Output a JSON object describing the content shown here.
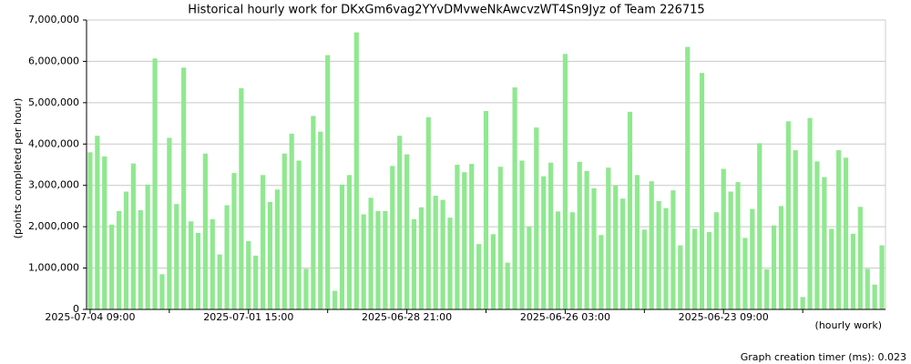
{
  "chart_data": {
    "type": "bar",
    "title": "Historical hourly work for DKxGm6vag2YYvDMvweNkAwcvzWT4Sn9Jyz of Team 226715",
    "y_label": "(points completed per hour)",
    "x_label": "(hourly work)",
    "footer": "Graph creation timer (ms): 0.023",
    "color": "#90e890",
    "grid": true,
    "ylim": [
      0,
      7000000
    ],
    "yticks": [
      0,
      {
        "value": 1000000,
        "label": "1,000,000"
      },
      {
        "value": 2000000,
        "label": "2,000,000"
      },
      {
        "value": 3000000,
        "label": "3,000,000"
      },
      {
        "value": 4000000,
        "label": "4,000,000"
      },
      {
        "value": 5000000,
        "label": "5,000,000"
      },
      {
        "value": 6000000,
        "label": "6,000,000"
      },
      {
        "value": 7000000,
        "label": "7,000,000"
      }
    ],
    "categories": [
      "2025-07-04 09:00",
      null,
      null,
      null,
      null,
      null,
      null,
      null,
      null,
      null,
      null,
      null,
      null,
      null,
      null,
      null,
      null,
      null,
      null,
      null,
      null,
      null,
      "2025-07-01 15:00",
      null,
      null,
      null,
      null,
      null,
      null,
      null,
      null,
      null,
      null,
      null,
      null,
      null,
      null,
      null,
      null,
      null,
      null,
      null,
      null,
      null,
      "2025-06-28 21:00",
      null,
      null,
      null,
      null,
      null,
      null,
      null,
      null,
      null,
      null,
      null,
      null,
      null,
      null,
      null,
      null,
      null,
      null,
      null,
      null,
      null,
      "2025-06-26 03:00",
      null,
      null,
      null,
      null,
      null,
      null,
      null,
      null,
      null,
      null,
      null,
      null,
      null,
      null,
      null,
      null,
      null,
      null,
      null,
      null,
      null,
      "2025-06-23 09:00",
      null,
      null,
      null,
      null,
      null,
      null,
      null,
      null,
      null,
      null,
      null,
      null,
      null,
      null,
      null,
      null,
      null,
      null,
      null,
      null,
      null,
      null
    ],
    "values": [
      3800000,
      4200000,
      3700000,
      2050000,
      2380000,
      2850000,
      3530000,
      2400000,
      3020000,
      6070000,
      850000,
      4150000,
      2550000,
      5850000,
      2130000,
      1850000,
      3770000,
      2180000,
      1330000,
      2520000,
      3300000,
      5350000,
      1650000,
      1300000,
      3250000,
      2600000,
      2900000,
      3770000,
      4250000,
      3600000,
      980000,
      4680000,
      4300000,
      6150000,
      450000,
      3020000,
      3250000,
      6700000,
      2300000,
      2700000,
      2380000,
      2380000,
      3470000,
      4200000,
      3750000,
      2180000,
      2470000,
      4650000,
      2750000,
      2650000,
      2220000,
      3500000,
      3320000,
      3520000,
      1580000,
      4800000,
      1820000,
      3450000,
      1130000,
      5370000,
      3600000,
      2000000,
      4400000,
      3220000,
      3550000,
      2370000,
      6180000,
      2350000,
      3570000,
      3350000,
      2930000,
      1800000,
      3430000,
      3000000,
      2680000,
      4780000,
      3250000,
      1930000,
      3100000,
      2620000,
      2450000,
      2880000,
      1550000,
      6350000,
      1950000,
      5720000,
      1870000,
      2350000,
      3400000,
      2850000,
      3080000,
      1730000,
      2430000,
      4020000,
      970000,
      2030000,
      2500000,
      4550000,
      3850000,
      300000,
      4630000,
      3580000,
      3200000,
      1950000,
      3850000,
      3670000,
      1830000,
      2480000,
      980000,
      600000,
      1550000
    ]
  }
}
